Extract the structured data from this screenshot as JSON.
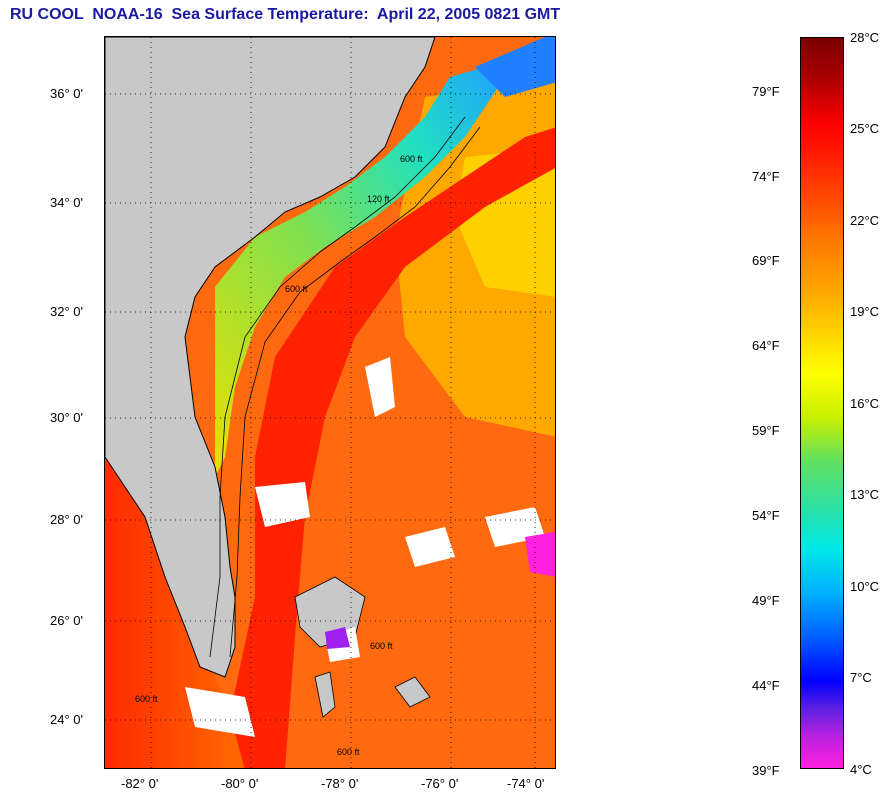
{
  "title": "RU COOL  NOAA-16  Sea Surface Temperature:  April 22, 2005 0821 GMT",
  "lat_labels": [
    "36° 0'",
    "34° 0'",
    "32° 0'",
    "30° 0'",
    "28° 0'",
    "26° 0'",
    "24° 0'"
  ],
  "lon_labels": [
    "-82° 0'",
    "-80° 0'",
    "-78° 0'",
    "-76° 0'",
    "-74° 0'"
  ],
  "colorbar": {
    "fahrenheit": [
      "79°F",
      "74°F",
      "69°F",
      "64°F",
      "59°F",
      "54°F",
      "49°F",
      "44°F",
      "39°F"
    ],
    "celsius": [
      "28°C",
      "25°C",
      "22°C",
      "19°C",
      "16°C",
      "13°C",
      "10°C",
      "7°C",
      "4°C"
    ]
  },
  "contour_labels": [
    "600 ft",
    "120 ft",
    "600 ft",
    "600 ft",
    "600 ft",
    "600 ft"
  ],
  "colors": {
    "title": "#1a1aa0",
    "land": "#c8c8c8",
    "warm": "#ff3300",
    "cold": "#00e8e8"
  }
}
